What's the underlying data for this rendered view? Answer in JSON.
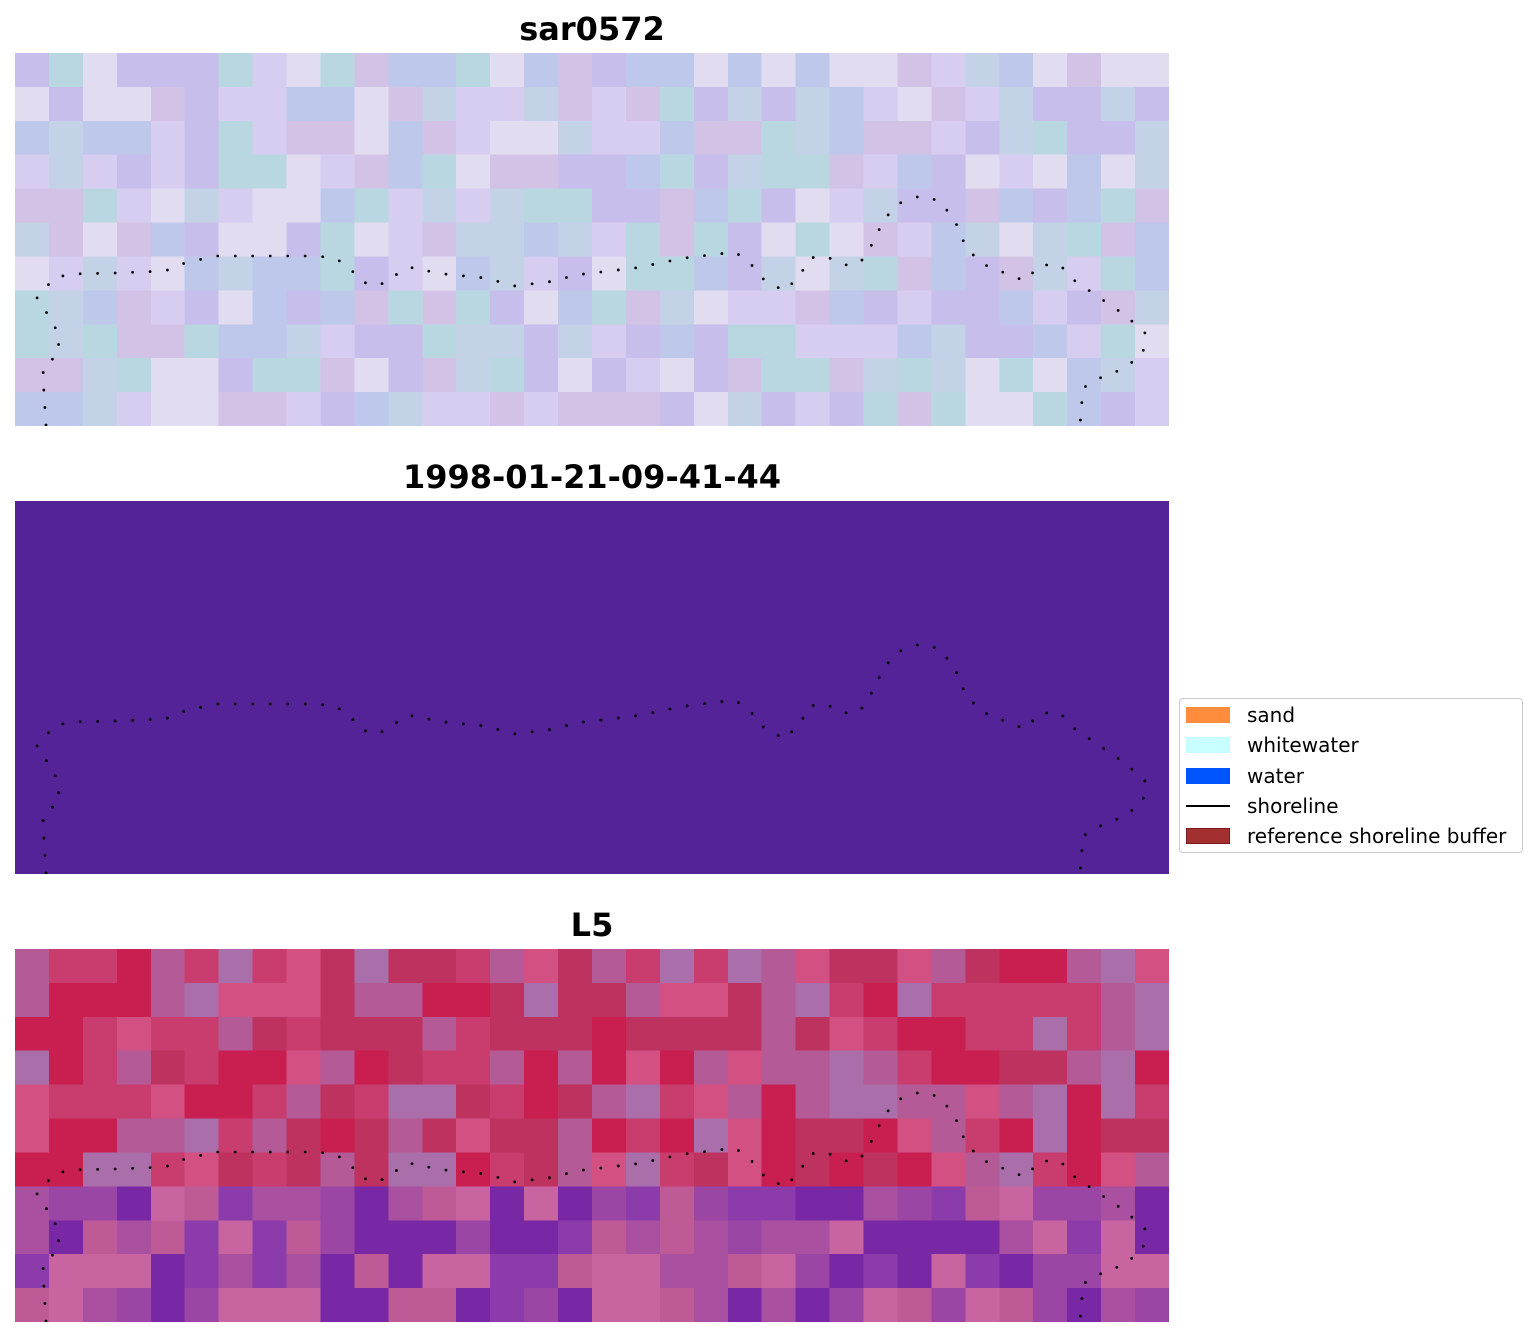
{
  "panels": [
    {
      "title": "sar0572",
      "kind": "sar-composite"
    },
    {
      "title": "1998-01-21-09-41-44",
      "kind": "classification",
      "fill_color": "#532397"
    },
    {
      "title": "L5",
      "kind": "landsat-composite"
    }
  ],
  "legend": {
    "items": [
      {
        "label": "sand",
        "color": "#ff8c3c",
        "type": "patch"
      },
      {
        "label": "whitewater",
        "color": "#c8ffff",
        "type": "patch"
      },
      {
        "label": "water",
        "color": "#0055ff",
        "type": "patch"
      },
      {
        "label": "shoreline",
        "color": "#000000",
        "type": "line"
      },
      {
        "label": "reference shoreline buffer",
        "color": "#a33030",
        "type": "patch"
      }
    ]
  }
}
